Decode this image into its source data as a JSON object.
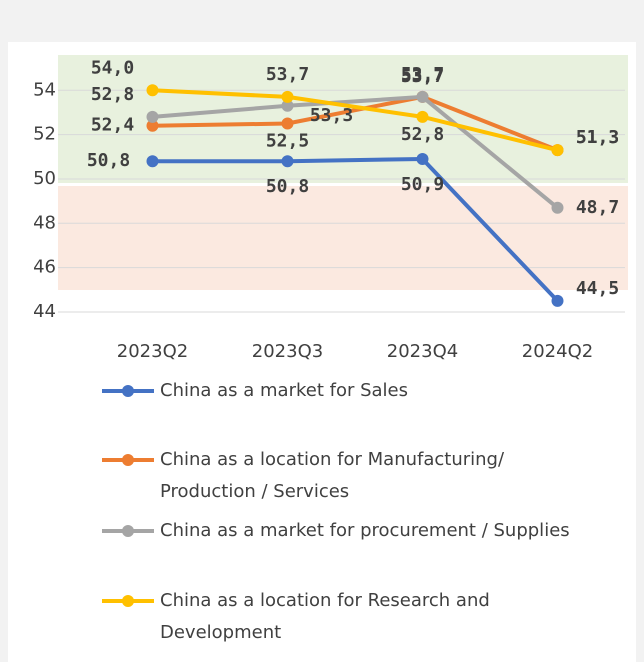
{
  "chart_data": {
    "type": "line",
    "categories": [
      "2023Q2",
      "2023Q3",
      "2023Q4",
      "2024Q2"
    ],
    "series": [
      {
        "name": "China as a market for Sales",
        "color": "#4472c4",
        "values": [
          50.8,
          50.8,
          50.9,
          44.5
        ],
        "value_labels": [
          "50,8",
          "50,8",
          "50,9",
          "44,5"
        ]
      },
      {
        "name": "China as a location for Manufacturing/ Production / Services",
        "color": "#ed7d31",
        "values": [
          52.4,
          52.5,
          53.7,
          51.3
        ],
        "value_labels": [
          "52,4",
          "52,5",
          "53,7",
          "51,3"
        ]
      },
      {
        "name": "China as a market for procurement / Supplies",
        "color": "#a5a5a5",
        "values": [
          52.8,
          53.3,
          53.7,
          48.7
        ],
        "value_labels": [
          "52,8",
          "53,3",
          "53,7",
          "48,7"
        ]
      },
      {
        "name": "China as a location for Research and Development",
        "color": "#ffc000",
        "values": [
          54.0,
          53.7,
          52.8,
          51.3
        ],
        "value_labels": [
          "54,0",
          "53,7",
          "52,8",
          "51,3"
        ]
      }
    ],
    "ylim": [
      44,
      55.5
    ],
    "yticks": [
      44,
      46,
      48,
      50,
      52,
      54
    ],
    "grid": true,
    "legend": "bottom"
  }
}
